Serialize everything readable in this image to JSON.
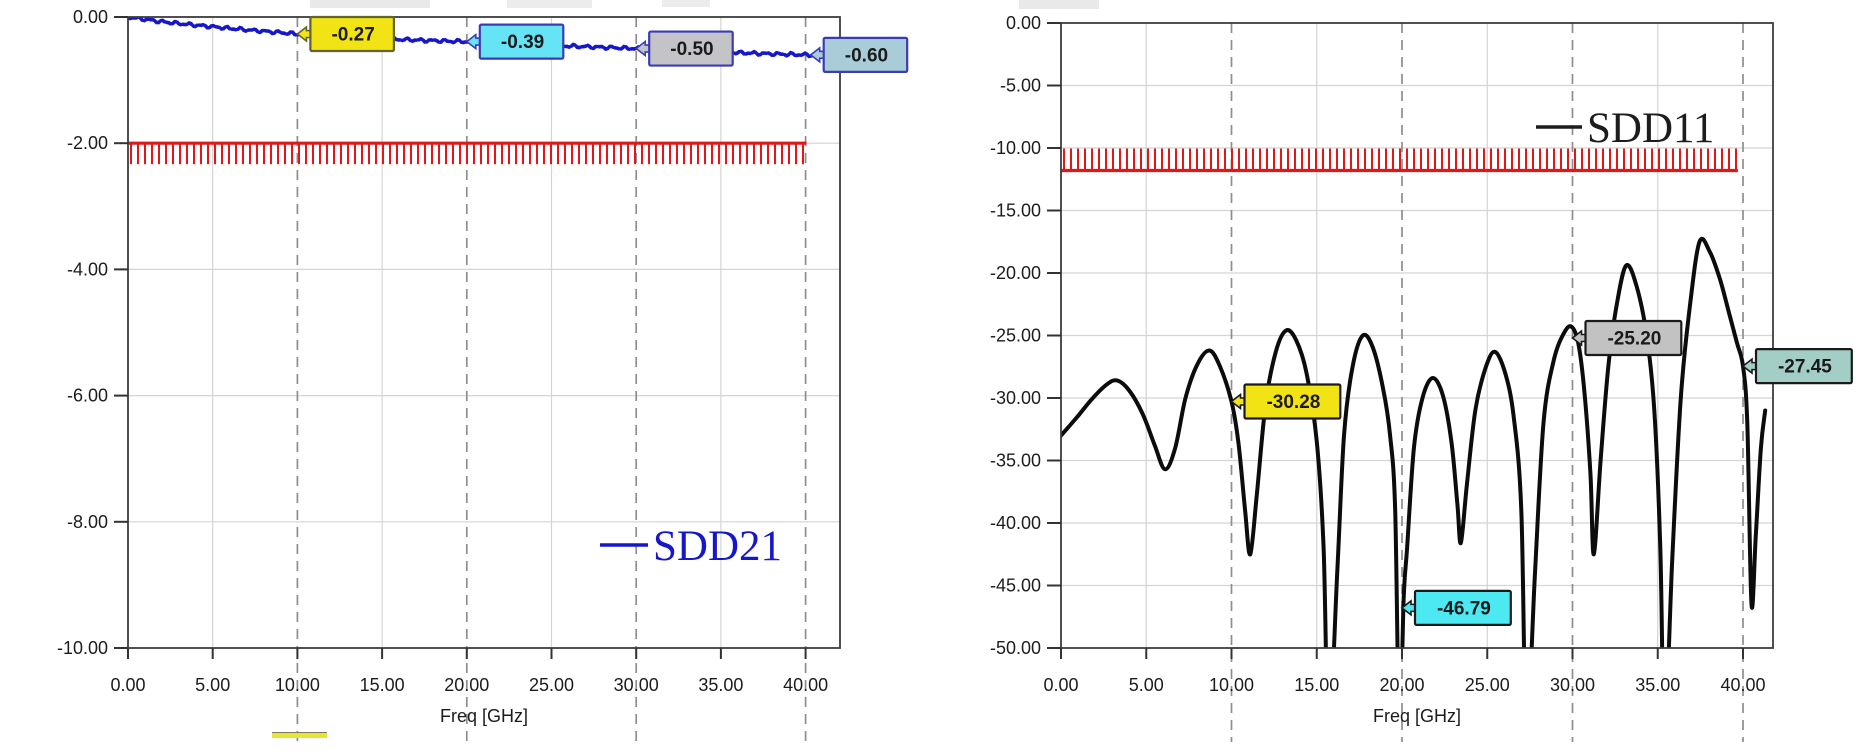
{
  "page": {
    "background": "#ffffff",
    "description": "Two S-parameter frequency response plots"
  },
  "chart_data": [
    {
      "type": "line",
      "title": "",
      "xlabel": "Freq [GHz]",
      "ylabel": "",
      "xlim": [
        0,
        42
      ],
      "ylim": [
        -10,
        0
      ],
      "grid": true,
      "x_ticks": [
        0,
        5,
        10,
        15,
        20,
        25,
        30,
        35,
        40
      ],
      "x_tick_labels": [
        "0.00",
        "5.00",
        "10.00",
        "15.00",
        "20.00",
        "25.00",
        "30.00",
        "35.00",
        "40.00"
      ],
      "y_ticks": [
        0,
        -2,
        -4,
        -6,
        -8,
        -10
      ],
      "y_tick_labels": [
        "0.00",
        "-2.00",
        "-4.00",
        "-6.00",
        "-8.00",
        "-10.00"
      ],
      "dashed_gridlines_x": [
        10,
        20,
        30,
        40
      ],
      "solid_gridlines_x": [
        5,
        15,
        25,
        35
      ],
      "legend": {
        "label": "SDD21",
        "color": "#1616cb",
        "position": "lower-right"
      },
      "limit_line": {
        "y": -2.0,
        "x_start": 0,
        "x_end": 40.05,
        "hatch": "below",
        "color": "#e11818"
      },
      "series": [
        {
          "name": "SDD21",
          "color": "#1616cb",
          "style": "beaded",
          "points": [
            [
              0,
              0
            ],
            [
              2,
              -0.075
            ],
            [
              4,
              -0.13
            ],
            [
              6,
              -0.18
            ],
            [
              8,
              -0.225
            ],
            [
              10,
              -0.27
            ],
            [
              12,
              -0.3
            ],
            [
              14,
              -0.33
            ],
            [
              16,
              -0.355
            ],
            [
              18,
              -0.375
            ],
            [
              20,
              -0.39
            ],
            [
              22,
              -0.415
            ],
            [
              24,
              -0.44
            ],
            [
              26,
              -0.46
            ],
            [
              28,
              -0.48
            ],
            [
              30,
              -0.5
            ],
            [
              32,
              -0.52
            ],
            [
              34,
              -0.545
            ],
            [
              36,
              -0.565
            ],
            [
              38,
              -0.585
            ],
            [
              40,
              -0.6
            ],
            [
              42,
              -0.615
            ]
          ]
        }
      ],
      "markers": [
        {
          "label": "-0.27",
          "x": 10,
          "y": -0.27,
          "fill": "#f2e414",
          "border": "#62622c"
        },
        {
          "label": "-0.39",
          "x": 20,
          "y": -0.39,
          "fill": "#66e4f6",
          "border": "#3b3bb4"
        },
        {
          "label": "-0.50",
          "x": 30,
          "y": -0.5,
          "fill": "#c4c4c8",
          "border": "#3b3bb4"
        },
        {
          "label": "-0.60",
          "x": 40.3,
          "y": -0.6,
          "fill": "#a8cdd8",
          "border": "#3b3bb4"
        }
      ]
    },
    {
      "type": "line",
      "title": "",
      "xlabel": "Freq [GHz]",
      "ylabel": "",
      "xlim": [
        0,
        41.6
      ],
      "ylim": [
        -50,
        0
      ],
      "grid": true,
      "x_ticks": [
        0,
        5,
        10,
        15,
        20,
        25,
        30,
        35,
        40
      ],
      "x_tick_labels": [
        "0.00",
        "5.00",
        "10.00",
        "15.00",
        "20.00",
        "25.00",
        "30.00",
        "35.00",
        "40.00"
      ],
      "y_ticks": [
        0,
        -5,
        -10,
        -15,
        -20,
        -25,
        -30,
        -35,
        -40,
        -45,
        -50
      ],
      "y_tick_labels": [
        "0.00",
        "-5.00",
        "-10.00",
        "-15.00",
        "-20.00",
        "-25.00",
        "-30.00",
        "-35.00",
        "-40.00",
        "-45.00",
        "-50.00"
      ],
      "dashed_gridlines_x": [
        10,
        20,
        30,
        40
      ],
      "solid_gridlines_x": [
        5,
        15,
        25,
        35
      ],
      "legend": {
        "label": "SDD11",
        "color": "#1c1c1c",
        "position": "upper-right"
      },
      "limit_line": {
        "y": -11.8,
        "x_start": 0,
        "x_end": 39.7,
        "hatch": "above",
        "color": "#e11818"
      },
      "series": [
        {
          "name": "SDD11",
          "color": "#0c0c0c",
          "style": "solid",
          "points": [
            [
              0,
              -33
            ],
            [
              0.9,
              -31.6
            ],
            [
              1.8,
              -30.1
            ],
            [
              2.7,
              -28.9
            ],
            [
              3.3,
              -28.6
            ],
            [
              4,
              -29.4
            ],
            [
              4.8,
              -31.3
            ],
            [
              5.5,
              -33.8
            ],
            [
              6.1,
              -35.7
            ],
            [
              6.7,
              -34
            ],
            [
              7.3,
              -30
            ],
            [
              8,
              -27.3
            ],
            [
              8.7,
              -26.2
            ],
            [
              9.3,
              -27.4
            ],
            [
              10,
              -30.28
            ],
            [
              10.4,
              -33.5
            ],
            [
              10.8,
              -39
            ],
            [
              11.1,
              -42.5
            ],
            [
              11.5,
              -37.5
            ],
            [
              12,
              -30.5
            ],
            [
              12.6,
              -26.3
            ],
            [
              13.2,
              -24.6
            ],
            [
              13.8,
              -25.4
            ],
            [
              14.4,
              -28
            ],
            [
              15,
              -33.5
            ],
            [
              15.4,
              -42
            ],
            [
              15.7,
              -57
            ],
            [
              16.2,
              -44
            ],
            [
              16.6,
              -33
            ],
            [
              17.1,
              -27.5
            ],
            [
              17.7,
              -25
            ],
            [
              18.3,
              -26
            ],
            [
              18.9,
              -29.3
            ],
            [
              19.3,
              -33
            ],
            [
              19.6,
              -39
            ],
            [
              19.85,
              -57
            ],
            [
              20.1,
              -46
            ],
            [
              20.3,
              -42
            ],
            [
              20.7,
              -34
            ],
            [
              21.2,
              -30
            ],
            [
              21.8,
              -28.4
            ],
            [
              22.4,
              -29.8
            ],
            [
              22.9,
              -33.5
            ],
            [
              23.25,
              -38.5
            ],
            [
              23.45,
              -41.6
            ],
            [
              23.8,
              -37
            ],
            [
              24.3,
              -31
            ],
            [
              24.9,
              -27.6
            ],
            [
              25.45,
              -26.3
            ],
            [
              26.05,
              -28
            ],
            [
              26.55,
              -31.5
            ],
            [
              27,
              -39
            ],
            [
              27.3,
              -57
            ],
            [
              27.8,
              -44
            ],
            [
              28.3,
              -32
            ],
            [
              28.9,
              -27
            ],
            [
              29.5,
              -24.8
            ],
            [
              29.95,
              -24.3
            ],
            [
              30.35,
              -25.7
            ],
            [
              30.7,
              -29.5
            ],
            [
              31.05,
              -36
            ],
            [
              31.25,
              -42.5
            ],
            [
              31.65,
              -35
            ],
            [
              32.1,
              -27.5
            ],
            [
              32.6,
              -22.5
            ],
            [
              33.15,
              -19.4
            ],
            [
              33.75,
              -21
            ],
            [
              34.35,
              -25
            ],
            [
              34.8,
              -31
            ],
            [
              35.15,
              -42
            ],
            [
              35.4,
              -57
            ],
            [
              35.85,
              -43
            ],
            [
              36.35,
              -30
            ],
            [
              36.9,
              -22.5
            ],
            [
              37.45,
              -17.5
            ],
            [
              38.05,
              -18.3
            ],
            [
              38.65,
              -20.5
            ],
            [
              39.2,
              -23.3
            ],
            [
              39.65,
              -25.6
            ],
            [
              40,
              -27.45
            ],
            [
              40.25,
              -32
            ],
            [
              40.5,
              -46.5
            ],
            [
              40.75,
              -41
            ],
            [
              41.05,
              -34
            ],
            [
              41.3,
              -31
            ]
          ]
        }
      ],
      "markers": [
        {
          "label": "-30.28",
          "x": 10,
          "y": -30.28,
          "fill": "#f2e414",
          "border": "#1a1a1a"
        },
        {
          "label": "-46.79",
          "x": 20,
          "y": -46.79,
          "fill": "#4ce9f2",
          "border": "#1a1a1a"
        },
        {
          "label": "-25.20",
          "x": 30,
          "y": -25.2,
          "fill": "#c2c2c2",
          "border": "#1a1a1a"
        },
        {
          "label": "-27.45",
          "x": 40,
          "y": -27.45,
          "fill": "#a3cec6",
          "border": "#1a1a1a"
        }
      ]
    }
  ]
}
